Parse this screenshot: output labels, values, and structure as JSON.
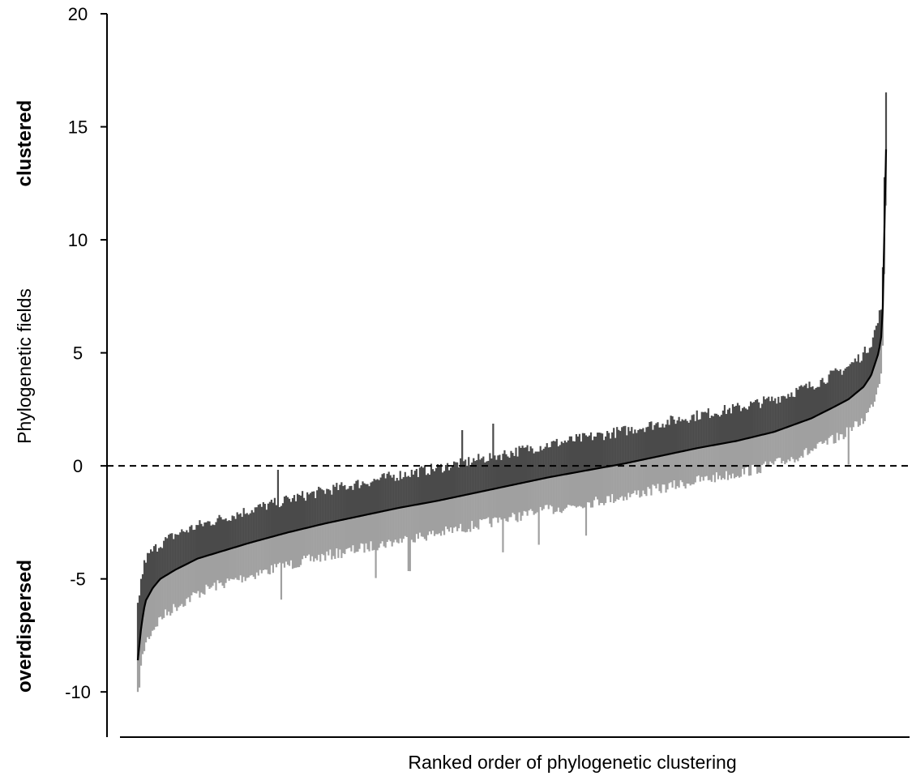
{
  "chart_data": {
    "type": "line",
    "title": "",
    "xlabel": "Ranked order of phylogenetic clustering",
    "ylabel": "Phylogenetic fields",
    "ylim": [
      -12,
      20
    ],
    "yticks": [
      20,
      15,
      10,
      5,
      0,
      -5,
      -10
    ],
    "reference_line": {
      "y": 0,
      "style": "dashed"
    },
    "side_labels": {
      "top": "clustered",
      "bottom": "overdispersed"
    },
    "n_points": 460,
    "rank_quantiles": [
      0,
      0.005,
      0.01,
      0.02,
      0.03,
      0.05,
      0.08,
      0.1,
      0.15,
      0.2,
      0.25,
      0.3,
      0.35,
      0.4,
      0.45,
      0.5,
      0.55,
      0.6,
      0.65,
      0.7,
      0.75,
      0.8,
      0.85,
      0.9,
      0.93,
      0.95,
      0.97,
      0.98,
      0.99,
      0.995,
      1
    ],
    "series": [
      {
        "values": [
          -8.6,
          -7.0,
          -6.0,
          -5.4,
          -5.0,
          -4.6,
          -4.1,
          -3.9,
          -3.4,
          -2.95,
          -2.55,
          -2.2,
          -1.85,
          -1.55,
          -1.2,
          -0.85,
          -0.5,
          -0.2,
          0.1,
          0.45,
          0.8,
          1.1,
          1.5,
          2.1,
          2.6,
          2.95,
          3.5,
          4.0,
          5.0,
          6.0,
          14.0
        ],
        "color": "#000000",
        "role": "ranked estimate"
      },
      {
        "values": [
          -6.4,
          -5.2,
          -4.4,
          -4.0,
          -3.7,
          -3.3,
          -2.9,
          -2.7,
          -2.2,
          -1.75,
          -1.35,
          -1.0,
          -0.65,
          -0.35,
          0.0,
          0.35,
          0.7,
          1.0,
          1.3,
          1.65,
          2.0,
          2.3,
          2.7,
          3.3,
          3.8,
          4.15,
          4.7,
          5.2,
          6.2,
          7.2,
          16.3
        ],
        "color": "#4a4a4a",
        "role": "upper bound"
      },
      {
        "values": [
          -10.0,
          -8.5,
          -7.6,
          -7.0,
          -6.5,
          -6.0,
          -5.4,
          -5.1,
          -4.6,
          -4.15,
          -3.75,
          -3.4,
          -3.05,
          -2.75,
          -2.4,
          -2.05,
          -1.7,
          -1.4,
          -1.1,
          -0.75,
          -0.4,
          -0.1,
          0.3,
          0.9,
          1.4,
          1.75,
          2.3,
          2.8,
          3.8,
          4.8,
          12.0
        ],
        "color": "#a0a0a0",
        "role": "lower bound"
      }
    ]
  }
}
